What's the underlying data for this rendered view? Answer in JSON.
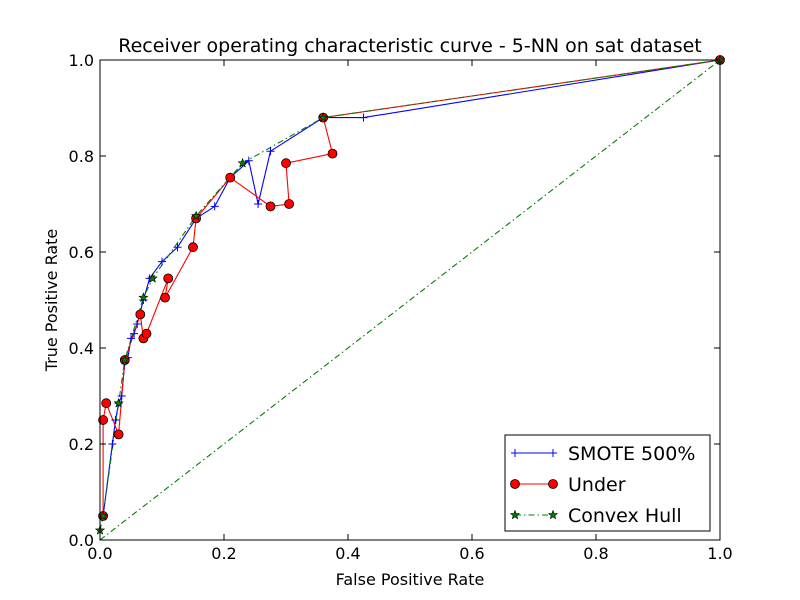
{
  "chart_data": {
    "type": "line",
    "title": "Receiver operating characteristic curve - 5-NN on sat dataset",
    "xlabel": "False Positive Rate",
    "ylabel": "True Positive Rate",
    "xlim": [
      0.0,
      1.0
    ],
    "ylim": [
      0.0,
      1.0
    ],
    "xticks": [
      "0.0",
      "0.2",
      "0.4",
      "0.6",
      "0.8",
      "1.0"
    ],
    "yticks": [
      "0.0",
      "0.2",
      "0.4",
      "0.6",
      "0.8",
      "1.0"
    ],
    "grid": false,
    "legend_position": "lower-right",
    "series": [
      {
        "name": "SMOTE 500%",
        "color": "#0000ff",
        "marker": "plus",
        "linestyle": "solid",
        "x": [
          0.005,
          0.02,
          0.025,
          0.03,
          0.035,
          0.04,
          0.045,
          0.05,
          0.055,
          0.06,
          0.07,
          0.08,
          0.1,
          0.125,
          0.155,
          0.185,
          0.21,
          0.24,
          0.255,
          0.275,
          0.36,
          0.425,
          1.0
        ],
        "y": [
          0.05,
          0.2,
          0.25,
          0.285,
          0.3,
          0.37,
          0.38,
          0.42,
          0.43,
          0.45,
          0.5,
          0.545,
          0.58,
          0.61,
          0.67,
          0.695,
          0.755,
          0.79,
          0.7,
          0.81,
          0.88,
          0.88,
          1.0
        ]
      },
      {
        "name": "Under",
        "color": "#ff0000",
        "marker": "circle",
        "linestyle": "solid",
        "x": [
          0.005,
          0.005,
          0.01,
          0.03,
          0.04,
          0.065,
          0.07,
          0.075,
          0.11,
          0.105,
          0.15,
          0.155,
          0.21,
          0.275,
          0.305,
          0.3,
          0.375,
          0.36,
          1.0
        ],
        "y": [
          0.05,
          0.25,
          0.285,
          0.22,
          0.375,
          0.47,
          0.42,
          0.43,
          0.545,
          0.505,
          0.61,
          0.67,
          0.755,
          0.695,
          0.7,
          0.785,
          0.805,
          0.88,
          1.0
        ]
      },
      {
        "name": "Convex Hull",
        "color": "#008000",
        "marker": "star",
        "linestyle": "dashdot",
        "x": [
          0.0,
          0.005,
          0.03,
          0.04,
          0.07,
          0.085,
          0.155,
          0.23,
          0.36,
          1.0
        ],
        "y": [
          0.02,
          0.05,
          0.285,
          0.375,
          0.505,
          0.545,
          0.675,
          0.785,
          0.88,
          1.0
        ]
      },
      {
        "name": "",
        "color": "#008000",
        "marker": "none",
        "linestyle": "dashdot",
        "x": [
          0.0,
          1.0
        ],
        "y": [
          0.0,
          1.0
        ]
      }
    ]
  }
}
